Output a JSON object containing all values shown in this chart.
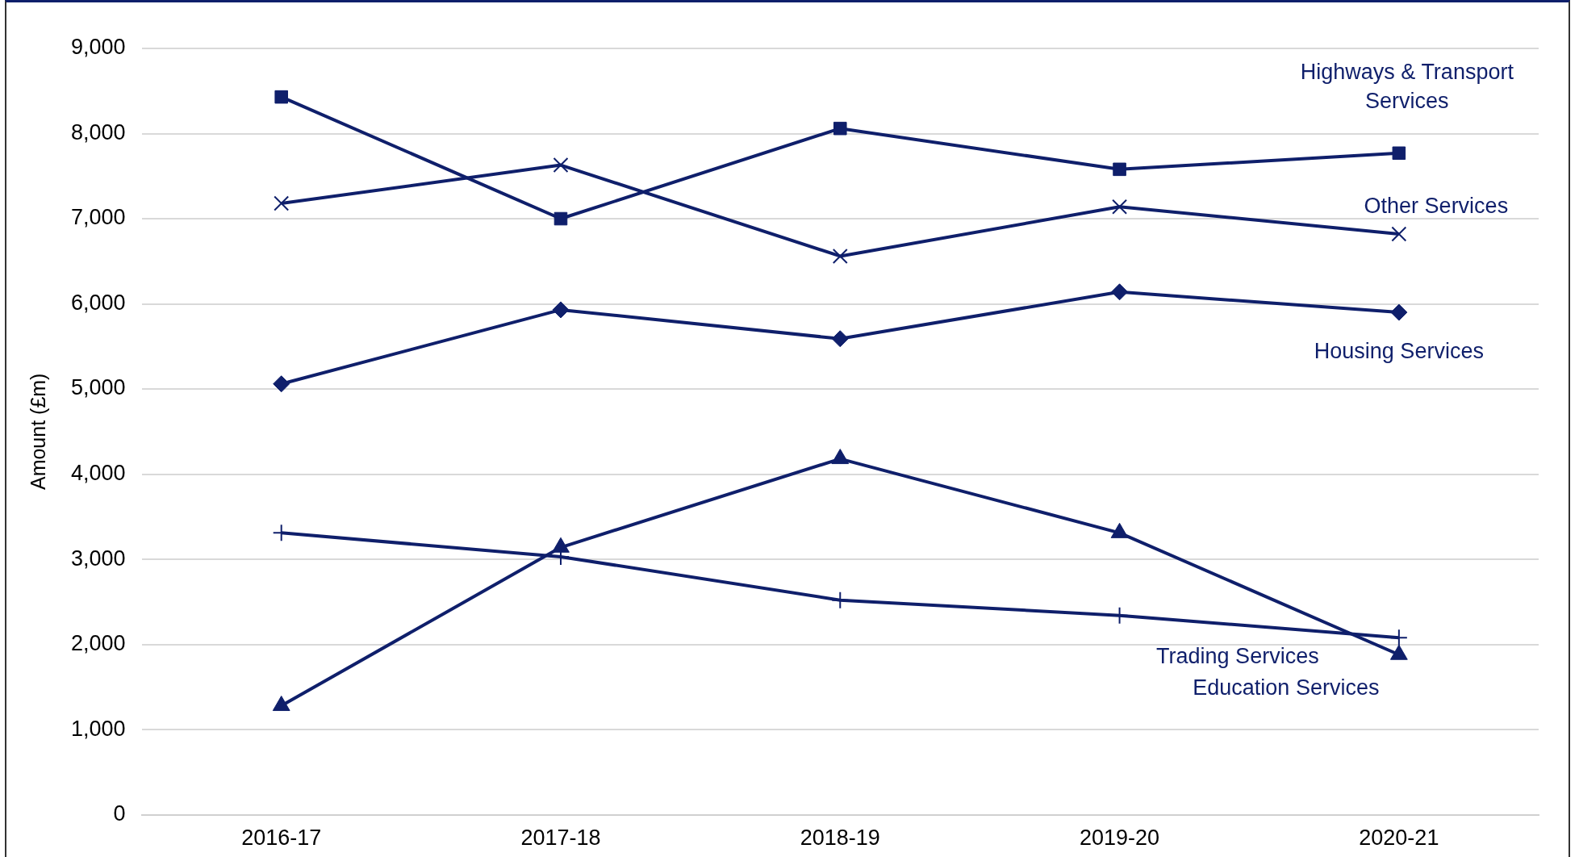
{
  "chart_data": {
    "type": "line",
    "ylabel": "Amount (£m)",
    "categories": [
      "2016-17",
      "2017-18",
      "2018-19",
      "2019-20",
      "2020-21"
    ],
    "series": [
      {
        "name": "Highways & Transport Services",
        "color": "#0f1f6b",
        "marker": "square",
        "values": [
          8430,
          7000,
          8060,
          7580,
          7770
        ]
      },
      {
        "name": "Other Services",
        "color": "#0f1f6b",
        "marker": "cross",
        "values": [
          7180,
          7630,
          6560,
          7140,
          6820
        ]
      },
      {
        "name": "Housing Services",
        "color": "#0f1f6b",
        "marker": "diamond",
        "values": [
          5060,
          5930,
          5590,
          6140,
          5900
        ]
      },
      {
        "name": "Trading Services",
        "color": "#0f1f6b",
        "marker": "plus",
        "values": [
          3310,
          3030,
          2520,
          2340,
          2080
        ]
      },
      {
        "name": "Education Services",
        "color": "#0f1f6b",
        "marker": "triangle",
        "values": [
          1280,
          3140,
          4180,
          3310,
          1880
        ]
      }
    ],
    "ylim": [
      0,
      9000
    ],
    "yticks": [
      0,
      {
        "value": 1000,
        "label": "1,000"
      },
      {
        "value": 2000,
        "label": "2,000"
      },
      {
        "value": 3000,
        "label": "3,000"
      },
      {
        "value": 4000,
        "label": "4,000"
      },
      {
        "value": 5000,
        "label": "5,000"
      },
      {
        "value": 6000,
        "label": "6,000"
      },
      {
        "value": 7000,
        "label": "7,000"
      },
      {
        "value": 8000,
        "label": "8,000"
      },
      {
        "value": 9000,
        "label": "9,000"
      }
    ],
    "grid": "y",
    "legend": false
  }
}
